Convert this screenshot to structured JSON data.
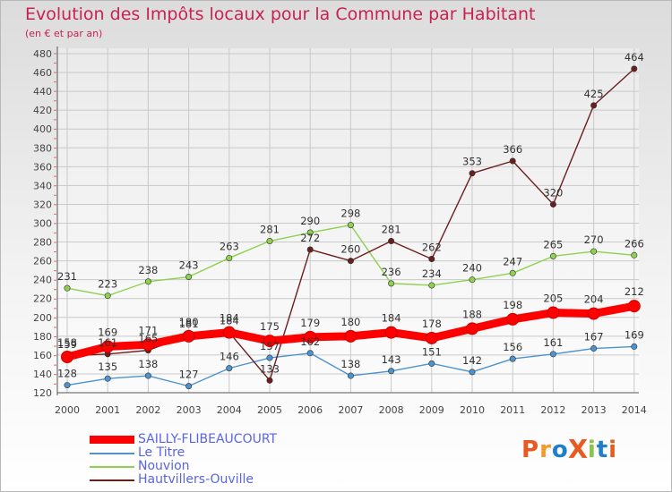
{
  "header": {
    "title": "Evolution des Impôts locaux pour la Commune par Habitant",
    "subtitle": "(en € et par an)"
  },
  "logo": {
    "text": "ProXiti",
    "colors": [
      "#e85a1f",
      "#f19a2c",
      "#1f7fc9",
      "#e85a1f",
      "#8bc34a",
      "#1f7fc9",
      "#e85a1f"
    ]
  },
  "chart_data": {
    "type": "line",
    "title": "Evolution des Impôts locaux pour la Commune par Habitant",
    "subtitle": "(en € et par an)",
    "xlabel": "",
    "ylabel": "",
    "categories": [
      "2000",
      "2001",
      "2002",
      "2003",
      "2004",
      "2005",
      "2006",
      "2007",
      "2008",
      "2009",
      "2010",
      "2011",
      "2012",
      "2013",
      "2014"
    ],
    "ylim": [
      120,
      480
    ],
    "yticks": [
      120,
      140,
      160,
      180,
      200,
      220,
      240,
      260,
      280,
      300,
      320,
      340,
      360,
      380,
      400,
      420,
      440,
      460,
      480
    ],
    "grid": true,
    "legend_position": "bottom-left",
    "series": [
      {
        "name": "SAILLY-FLIBEAUCOURT",
        "color": "#ff0000",
        "emphasis": true,
        "values": [
          158,
          169,
          171,
          180,
          184,
          175,
          179,
          180,
          184,
          178,
          188,
          198,
          205,
          204,
          212
        ]
      },
      {
        "name": "Le Titre",
        "color": "#4d93d0",
        "emphasis": false,
        "values": [
          128,
          135,
          138,
          127,
          146,
          157,
          162,
          138,
          143,
          151,
          142,
          156,
          161,
          167,
          169
        ]
      },
      {
        "name": "Nouvion",
        "color": "#8ed14f",
        "emphasis": false,
        "values": [
          231,
          223,
          238,
          243,
          263,
          281,
          290,
          298,
          236,
          234,
          240,
          247,
          265,
          270,
          266
        ]
      },
      {
        "name": "Hautvillers-Ouville",
        "color": "#6b1e1e",
        "emphasis": false,
        "values": [
          159,
          161,
          165,
          181,
          184,
          133,
          272,
          260,
          281,
          262,
          353,
          366,
          320,
          425,
          464
        ]
      }
    ]
  }
}
